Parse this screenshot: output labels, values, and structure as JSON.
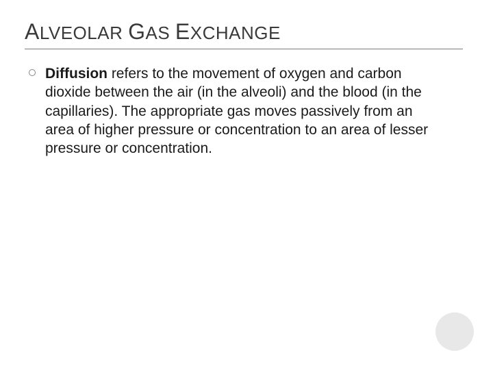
{
  "slide": {
    "title_parts": {
      "w1_cap": "A",
      "w1_rest": "LVEOLAR",
      "w2_cap": "G",
      "w2_rest": "AS",
      "w3_cap": "E",
      "w3_rest": "XCHANGE"
    },
    "bullet": {
      "bold_term": "Diffusion",
      "rest": " refers to the movement of oxygen and carbon dioxide between the air (in the alveoli) and the blood (in the capillaries). The appropriate gas moves passively from an area of higher  pressure or concentration to an area of lesser pressure or concentration."
    }
  },
  "style": {
    "background_color": "#ffffff",
    "title_color": "#3a3a3a",
    "underline_color": "#7a7a7a",
    "body_color": "#1a1a1a",
    "bullet_border_color": "#888888",
    "corner_circle_color": "#e8e8e8",
    "title_fontsize_small": 26,
    "title_fontsize_cap": 32,
    "body_fontsize": 21
  }
}
